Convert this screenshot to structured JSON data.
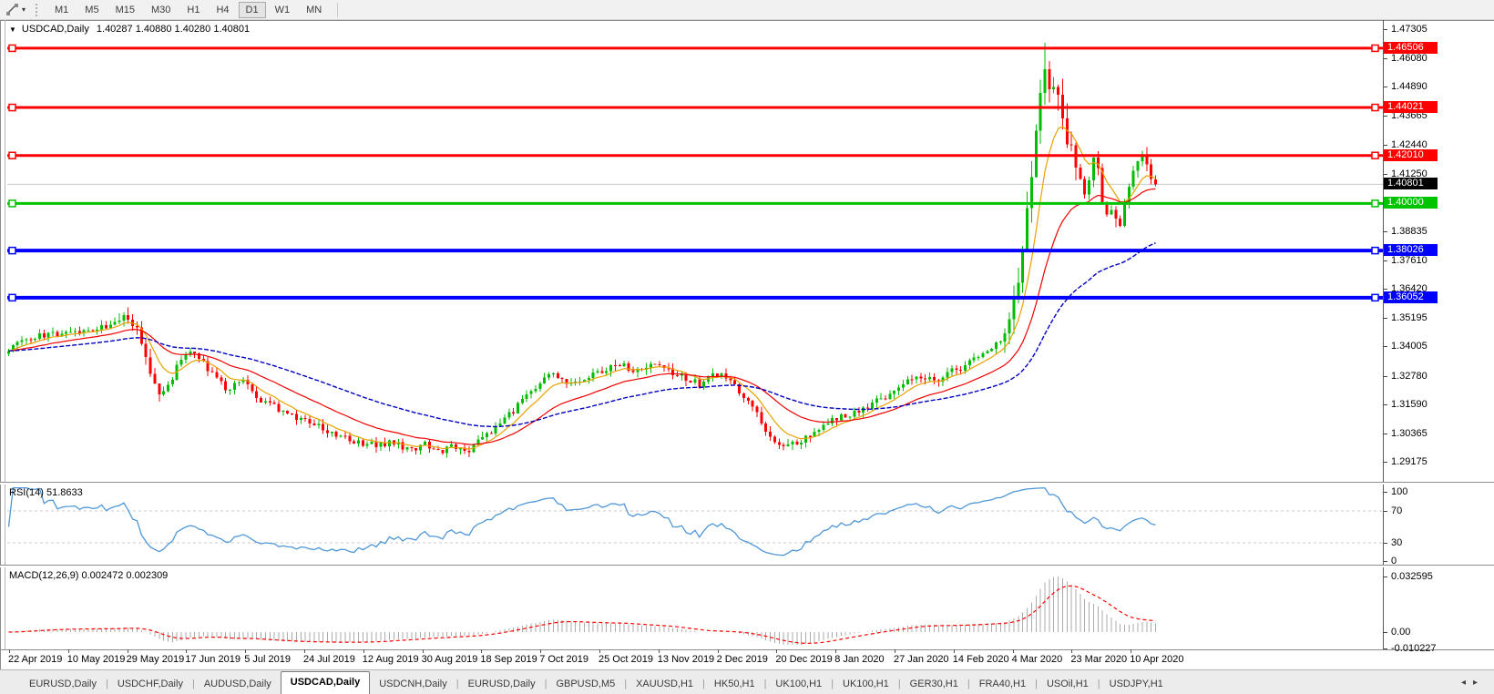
{
  "toolbar": {
    "timeframes": [
      "M1",
      "M5",
      "M15",
      "M30",
      "H1",
      "H4",
      "D1",
      "W1",
      "MN"
    ],
    "active_timeframe": "D1"
  },
  "icons": {
    "line_tool_caret": "▾",
    "window_menu": "▼",
    "tab_scroll_left": "◂",
    "tab_scroll_right": "▸",
    "tab_divider": "|"
  },
  "title": {
    "symbol": "USDCAD,Daily",
    "ohlc": "1.40287 1.40880 1.40280 1.40801"
  },
  "price_axis": {
    "ticks": [
      "1.47305",
      "1.46080",
      "1.44890",
      "1.43665",
      "1.42440",
      "1.41250",
      "1.38835",
      "1.37610",
      "1.36420",
      "1.35195",
      "1.34005",
      "1.32780",
      "1.31590",
      "1.30365",
      "1.29175"
    ]
  },
  "hlines": [
    {
      "price": "1.46506",
      "value": 1.46506,
      "color": "#ff0000",
      "type": "resistance"
    },
    {
      "price": "1.44021",
      "value": 1.44021,
      "color": "#ff0000",
      "type": "resistance"
    },
    {
      "price": "1.42010",
      "value": 1.4201,
      "color": "#ff0000",
      "type": "resistance"
    },
    {
      "price": "1.40000",
      "value": 1.4,
      "color": "#00c400",
      "type": "support"
    },
    {
      "price": "1.38026",
      "value": 1.38026,
      "color": "#0000ff",
      "type": "support"
    },
    {
      "price": "1.36052",
      "value": 1.36052,
      "color": "#0000ff",
      "type": "support"
    }
  ],
  "current_price": {
    "price": "1.40801",
    "value": 1.40801,
    "badge_color": "#000000",
    "line_color": "#c8c8c8"
  },
  "time_axis": {
    "labels": [
      "22 Apr 2019",
      "10 May 2019",
      "29 May 2019",
      "17 Jun 2019",
      "5 Jul 2019",
      "24 Jul 2019",
      "12 Aug 2019",
      "30 Aug 2019",
      "18 Sep 2019",
      "7 Oct 2019",
      "25 Oct 2019",
      "13 Nov 2019",
      "2 Dec 2019",
      "20 Dec 2019",
      "8 Jan 2020",
      "27 Jan 2020",
      "14 Feb 2020",
      "4 Mar 2020",
      "23 Mar 2020",
      "10 Apr 2020"
    ]
  },
  "rsi_panel": {
    "name": "RSI(14)",
    "value": "51.8633",
    "ticks": [
      "100",
      "70",
      "30",
      "0"
    ],
    "levels": [
      70,
      30
    ],
    "line_color": "#4f97d7",
    "level_color": "#c8c8c8"
  },
  "macd_panel": {
    "name": "MACD(12,26,9)",
    "value": "0.002472 0.002309",
    "ticks": [
      "0.032595",
      "0.00",
      "-0.010227"
    ],
    "histogram_color": "#ababab",
    "signal_color": "#ff0000"
  },
  "tabs": {
    "items": [
      {
        "label": "EURUSD,Daily",
        "active": false
      },
      {
        "label": "USDCHF,Daily",
        "active": false
      },
      {
        "label": "AUDUSD,Daily",
        "active": false
      },
      {
        "label": "USDCAD,Daily",
        "active": true
      },
      {
        "label": "USDCNH,Daily",
        "active": false
      },
      {
        "label": "EURUSD,Daily",
        "active": false
      },
      {
        "label": "GBPUSD,M5",
        "active": false
      },
      {
        "label": "XAUUSD,H1",
        "active": false
      },
      {
        "label": "HK50,H1",
        "active": false
      },
      {
        "label": "UK100,H1",
        "active": false
      },
      {
        "label": "UK100,H1",
        "active": false
      },
      {
        "label": "GER30,H1",
        "active": false
      },
      {
        "label": "FRA40,H1",
        "active": false
      },
      {
        "label": "USOil,H1",
        "active": false
      },
      {
        "label": "USDJPY,H1",
        "active": false
      }
    ]
  },
  "colors": {
    "candle_up": "#00bd00",
    "candle_down": "#ff0000",
    "ma_fast": "#e8a200",
    "ma_mid": "#f00000",
    "ma_slow": "#0000c0",
    "axis_line": "#5a5a5a"
  },
  "chart_data": {
    "type": "candlestick",
    "symbol": "USDCAD",
    "timeframe": "Daily",
    "bars": 260,
    "visible_price_range": [
      1.29175,
      1.47305
    ],
    "current_ohlc": {
      "open": 1.40287,
      "high": 1.4088,
      "low": 1.4028,
      "close": 1.40801
    },
    "horizontal_levels": [
      1.46506,
      1.44021,
      1.4201,
      1.4,
      1.38026,
      1.36052
    ],
    "close_anchors": [
      [
        0.0,
        1.339
      ],
      [
        0.025,
        1.3445
      ],
      [
        0.049,
        1.3455
      ],
      [
        0.073,
        1.346
      ],
      [
        0.089,
        1.349
      ],
      [
        0.1,
        1.3515
      ],
      [
        0.112,
        1.3465
      ],
      [
        0.122,
        1.333
      ],
      [
        0.131,
        1.3185
      ],
      [
        0.141,
        1.324
      ],
      [
        0.152,
        1.3375
      ],
      [
        0.162,
        1.338
      ],
      [
        0.176,
        1.329
      ],
      [
        0.19,
        1.322
      ],
      [
        0.205,
        1.325
      ],
      [
        0.22,
        1.318
      ],
      [
        0.237,
        1.313
      ],
      [
        0.254,
        1.309
      ],
      [
        0.271,
        1.306
      ],
      [
        0.288,
        1.303
      ],
      [
        0.305,
        1.3
      ],
      [
        0.322,
        1.2985
      ],
      [
        0.336,
        1.3
      ],
      [
        0.35,
        1.297
      ],
      [
        0.362,
        1.2995
      ],
      [
        0.374,
        1.2955
      ],
      [
        0.386,
        1.2985
      ],
      [
        0.398,
        1.296
      ],
      [
        0.41,
        1.3
      ],
      [
        0.424,
        1.306
      ],
      [
        0.438,
        1.312
      ],
      [
        0.452,
        1.32
      ],
      [
        0.465,
        1.326
      ],
      [
        0.476,
        1.3287
      ],
      [
        0.49,
        1.324
      ],
      [
        0.504,
        1.327
      ],
      [
        0.518,
        1.3305
      ],
      [
        0.532,
        1.333
      ],
      [
        0.546,
        1.329
      ],
      [
        0.56,
        1.332
      ],
      [
        0.574,
        1.33
      ],
      [
        0.588,
        1.327
      ],
      [
        0.602,
        1.324
      ],
      [
        0.616,
        1.329
      ],
      [
        0.63,
        1.325
      ],
      [
        0.642,
        1.319
      ],
      [
        0.654,
        1.31
      ],
      [
        0.666,
        1.302
      ],
      [
        0.676,
        1.298
      ],
      [
        0.69,
        1.2995
      ],
      [
        0.704,
        1.304
      ],
      [
        0.718,
        1.309
      ],
      [
        0.732,
        1.311
      ],
      [
        0.746,
        1.315
      ],
      [
        0.76,
        1.318
      ],
      [
        0.774,
        1.323
      ],
      [
        0.788,
        1.326
      ],
      [
        0.8,
        1.327
      ],
      [
        0.81,
        1.325
      ],
      [
        0.82,
        1.329
      ],
      [
        0.838,
        1.333
      ],
      [
        0.856,
        1.339
      ],
      [
        0.868,
        1.345
      ],
      [
        0.876,
        1.36
      ],
      [
        0.882,
        1.375
      ],
      [
        0.888,
        1.395
      ],
      [
        0.893,
        1.42
      ],
      [
        0.899,
        1.448
      ],
      [
        0.904,
        1.46
      ],
      [
        0.908,
        1.443
      ],
      [
        0.912,
        1.453
      ],
      [
        0.917,
        1.435
      ],
      [
        0.922,
        1.428
      ],
      [
        0.928,
        1.418
      ],
      [
        0.934,
        1.412
      ],
      [
        0.939,
        1.402
      ],
      [
        0.947,
        1.422
      ],
      [
        0.952,
        1.406
      ],
      [
        0.957,
        1.394
      ],
      [
        0.963,
        1.396
      ],
      [
        0.969,
        1.392
      ],
      [
        0.975,
        1.405
      ],
      [
        0.981,
        1.412
      ],
      [
        0.985,
        1.418
      ],
      [
        0.99,
        1.423
      ],
      [
        0.995,
        1.412
      ],
      [
        1.0,
        1.40801
      ]
    ],
    "moving_averages": [
      {
        "period": 8,
        "color": "#e8a200"
      },
      {
        "period": 24,
        "color": "#f00000"
      },
      {
        "period": 60,
        "color": "#0000c0"
      }
    ],
    "rsi": {
      "period": 14,
      "current": 51.8633
    },
    "macd": {
      "fast": 12,
      "slow": 26,
      "signal": 9,
      "current_macd": 0.002472,
      "current_signal": 0.002309
    }
  }
}
